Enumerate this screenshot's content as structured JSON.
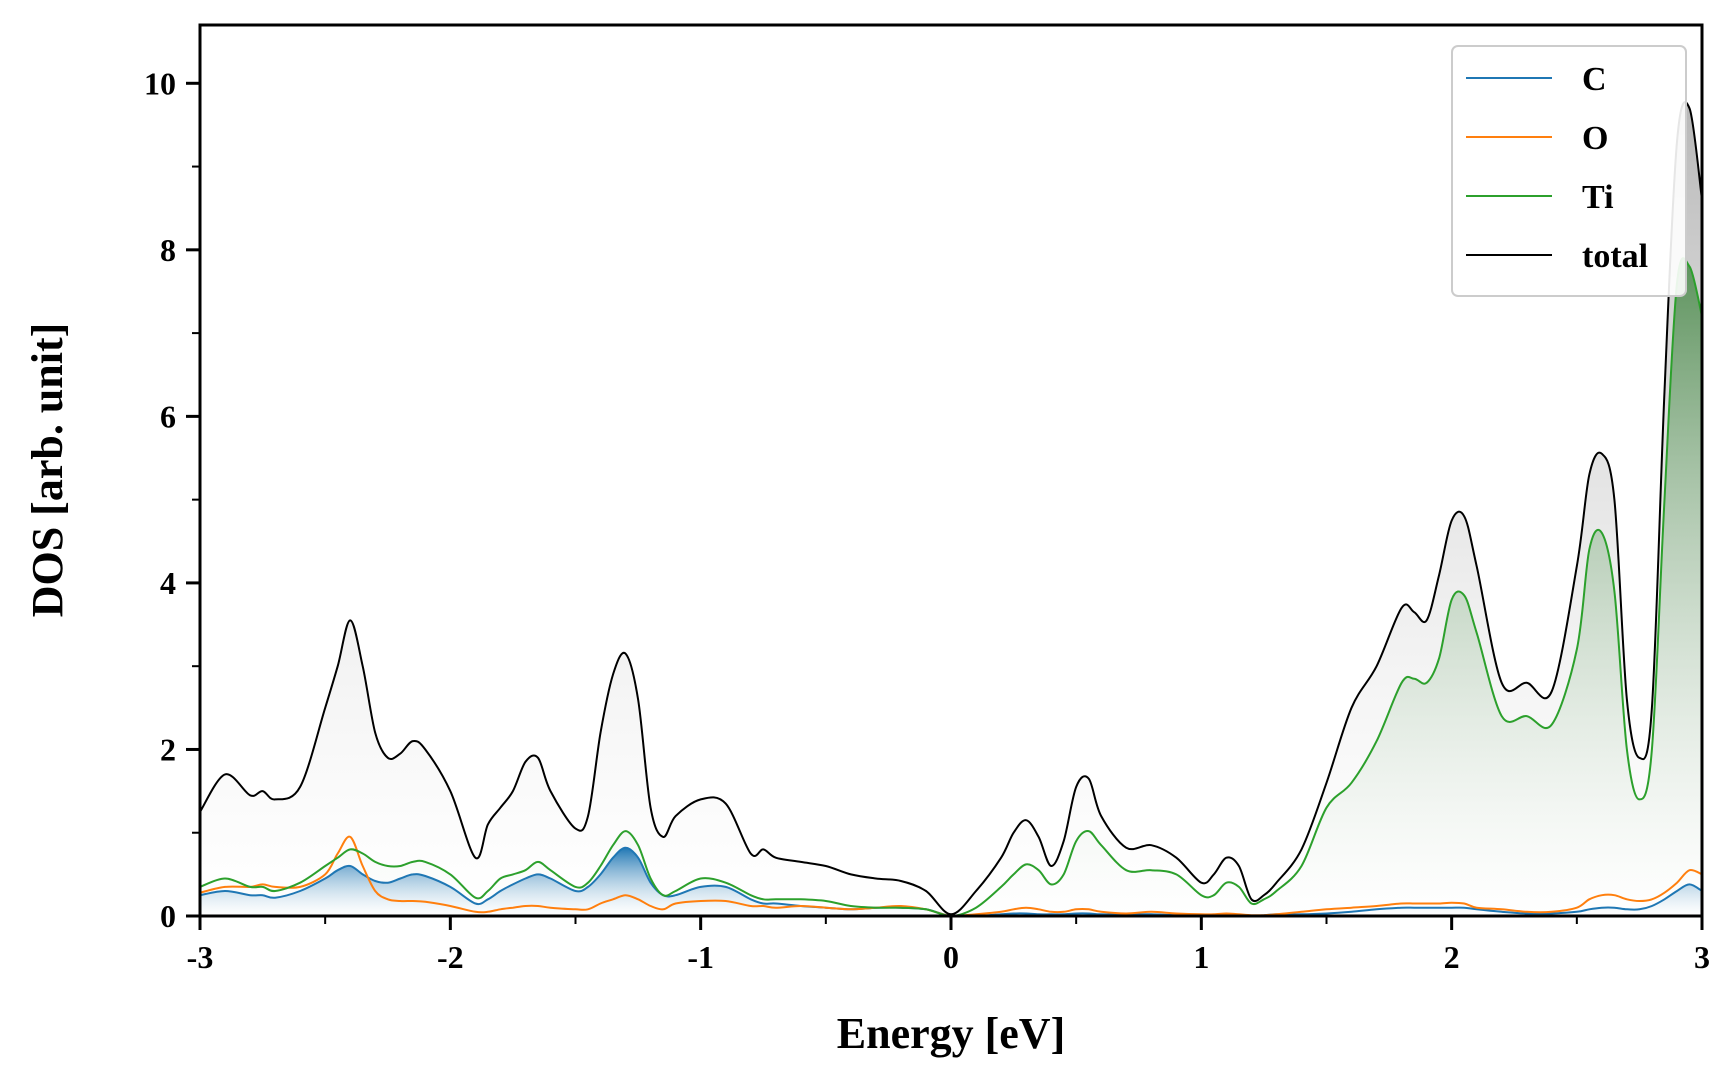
{
  "chart_data": {
    "type": "line",
    "title": "",
    "xlabel": "Energy [eV]",
    "ylabel": "DOS [arb. unit]",
    "xlim": [
      -3,
      3
    ],
    "ylim": [
      0,
      10.7
    ],
    "x_ticks": [
      -3,
      -2,
      -1,
      0,
      1,
      2,
      3
    ],
    "x_tick_labels": [
      "-3",
      "-2",
      "-1",
      "0",
      "1",
      "2",
      "3"
    ],
    "y_ticks": [
      0,
      2,
      4,
      6,
      8,
      10
    ],
    "y_tick_labels": [
      "0",
      "2",
      "4",
      "6",
      "8",
      "10"
    ],
    "grid": false,
    "legend_position": "top-right",
    "filled_under_curves": [
      "C",
      "Ti",
      "total"
    ],
    "x": [
      -3.0,
      -2.9,
      -2.8,
      -2.75,
      -2.7,
      -2.6,
      -2.5,
      -2.45,
      -2.4,
      -2.35,
      -2.3,
      -2.25,
      -2.2,
      -2.15,
      -2.1,
      -2.0,
      -1.9,
      -1.85,
      -1.8,
      -1.75,
      -1.7,
      -1.65,
      -1.6,
      -1.5,
      -1.45,
      -1.4,
      -1.35,
      -1.3,
      -1.25,
      -1.2,
      -1.15,
      -1.1,
      -1.0,
      -0.9,
      -0.8,
      -0.75,
      -0.7,
      -0.6,
      -0.5,
      -0.4,
      -0.3,
      -0.2,
      -0.1,
      0.0,
      0.1,
      0.2,
      0.25,
      0.3,
      0.35,
      0.4,
      0.45,
      0.5,
      0.55,
      0.6,
      0.7,
      0.8,
      0.9,
      1.0,
      1.05,
      1.1,
      1.15,
      1.2,
      1.25,
      1.3,
      1.4,
      1.5,
      1.6,
      1.7,
      1.8,
      1.85,
      1.9,
      1.95,
      2.0,
      2.05,
      2.1,
      2.2,
      2.3,
      2.4,
      2.5,
      2.55,
      2.6,
      2.65,
      2.7,
      2.75,
      2.8,
      2.85,
      2.9,
      2.95,
      3.0
    ],
    "series": [
      {
        "name": "C",
        "color": "#1f77b4",
        "values": [
          0.25,
          0.3,
          0.25,
          0.25,
          0.22,
          0.3,
          0.45,
          0.55,
          0.6,
          0.5,
          0.42,
          0.4,
          0.45,
          0.5,
          0.48,
          0.35,
          0.15,
          0.2,
          0.3,
          0.38,
          0.45,
          0.5,
          0.45,
          0.3,
          0.35,
          0.5,
          0.7,
          0.82,
          0.7,
          0.4,
          0.25,
          0.25,
          0.35,
          0.35,
          0.2,
          0.15,
          0.15,
          0.12,
          0.1,
          0.08,
          0.1,
          0.1,
          0.08,
          0.0,
          0.0,
          0.02,
          0.03,
          0.03,
          0.02,
          0.02,
          0.02,
          0.03,
          0.03,
          0.02,
          0.02,
          0.02,
          0.01,
          0.01,
          0.01,
          0.02,
          0.01,
          0.0,
          0.01,
          0.02,
          0.02,
          0.03,
          0.05,
          0.08,
          0.1,
          0.1,
          0.1,
          0.1,
          0.1,
          0.1,
          0.08,
          0.05,
          0.03,
          0.03,
          0.05,
          0.08,
          0.1,
          0.1,
          0.08,
          0.08,
          0.12,
          0.2,
          0.3,
          0.38,
          0.3
        ]
      },
      {
        "name": "O",
        "color": "#ff7f0e",
        "values": [
          0.28,
          0.35,
          0.35,
          0.38,
          0.35,
          0.35,
          0.5,
          0.75,
          0.95,
          0.6,
          0.3,
          0.2,
          0.18,
          0.18,
          0.17,
          0.12,
          0.05,
          0.05,
          0.08,
          0.1,
          0.12,
          0.12,
          0.1,
          0.08,
          0.08,
          0.15,
          0.2,
          0.25,
          0.2,
          0.12,
          0.08,
          0.15,
          0.18,
          0.18,
          0.12,
          0.12,
          0.1,
          0.12,
          0.1,
          0.08,
          0.1,
          0.12,
          0.08,
          0.0,
          0.02,
          0.05,
          0.08,
          0.1,
          0.08,
          0.05,
          0.05,
          0.08,
          0.08,
          0.05,
          0.03,
          0.05,
          0.03,
          0.02,
          0.02,
          0.03,
          0.02,
          0.01,
          0.01,
          0.02,
          0.05,
          0.08,
          0.1,
          0.12,
          0.15,
          0.15,
          0.15,
          0.15,
          0.16,
          0.15,
          0.1,
          0.08,
          0.05,
          0.05,
          0.1,
          0.2,
          0.25,
          0.25,
          0.2,
          0.18,
          0.2,
          0.28,
          0.4,
          0.55,
          0.5
        ]
      },
      {
        "name": "Ti",
        "color": "#2ca02c",
        "values": [
          0.35,
          0.45,
          0.35,
          0.35,
          0.3,
          0.4,
          0.6,
          0.7,
          0.8,
          0.75,
          0.65,
          0.6,
          0.6,
          0.65,
          0.65,
          0.5,
          0.22,
          0.3,
          0.45,
          0.5,
          0.55,
          0.65,
          0.55,
          0.35,
          0.4,
          0.6,
          0.85,
          1.02,
          0.85,
          0.45,
          0.25,
          0.3,
          0.45,
          0.4,
          0.25,
          0.2,
          0.2,
          0.2,
          0.18,
          0.12,
          0.1,
          0.1,
          0.08,
          0.0,
          0.1,
          0.35,
          0.5,
          0.62,
          0.55,
          0.38,
          0.5,
          0.9,
          1.02,
          0.85,
          0.55,
          0.55,
          0.5,
          0.25,
          0.25,
          0.4,
          0.35,
          0.15,
          0.2,
          0.3,
          0.6,
          1.3,
          1.6,
          2.1,
          2.8,
          2.85,
          2.8,
          3.1,
          3.8,
          3.85,
          3.4,
          2.4,
          2.4,
          2.3,
          3.2,
          4.4,
          4.6,
          3.9,
          2.0,
          1.4,
          2.0,
          5.0,
          7.6,
          7.8,
          7.2
        ]
      },
      {
        "name": "total",
        "color": "#000000",
        "values": [
          1.25,
          1.7,
          1.45,
          1.5,
          1.4,
          1.55,
          2.5,
          3.0,
          3.55,
          3.0,
          2.2,
          1.9,
          1.95,
          2.1,
          2.0,
          1.5,
          0.7,
          1.1,
          1.3,
          1.5,
          1.85,
          1.9,
          1.5,
          1.05,
          1.2,
          2.2,
          2.9,
          3.15,
          2.6,
          1.3,
          0.95,
          1.2,
          1.4,
          1.35,
          0.75,
          0.8,
          0.7,
          0.65,
          0.6,
          0.5,
          0.45,
          0.42,
          0.3,
          0.02,
          0.3,
          0.7,
          1.0,
          1.15,
          0.95,
          0.6,
          0.9,
          1.55,
          1.65,
          1.2,
          0.82,
          0.85,
          0.7,
          0.4,
          0.5,
          0.7,
          0.6,
          0.2,
          0.25,
          0.4,
          0.8,
          1.6,
          2.5,
          3.0,
          3.7,
          3.65,
          3.55,
          4.1,
          4.75,
          4.8,
          4.2,
          2.8,
          2.8,
          2.7,
          4.2,
          5.3,
          5.55,
          5.0,
          2.6,
          1.9,
          2.5,
          6.3,
          9.3,
          9.7,
          8.6
        ]
      }
    ]
  }
}
